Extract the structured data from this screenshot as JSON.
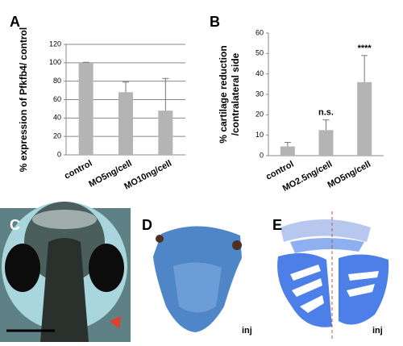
{
  "chart_data": [
    {
      "type": "bar",
      "panel_label": "A",
      "ylabel": "% expression of Pfkfb4/ control",
      "categories": [
        "control",
        "MO5ng/cell",
        "MO10ng/cell"
      ],
      "values": [
        100,
        68,
        48
      ],
      "errors": [
        0.5,
        11,
        35
      ],
      "color": "#b4b4b4",
      "ylim": [
        0,
        120
      ],
      "yticks": [
        0,
        20,
        40,
        60,
        80,
        100,
        120
      ],
      "grid": true
    },
    {
      "type": "bar",
      "panel_label": "B",
      "ylabel": [
        "% cartilage reduction",
        "/contralateral side"
      ],
      "categories": [
        "control",
        "MO2.5ng/cell",
        "MO5ng/cell"
      ],
      "values": [
        4.5,
        12.5,
        36
      ],
      "errors": [
        2,
        5,
        13
      ],
      "color": "#b4b4b4",
      "annotations": [
        null,
        "n.s.",
        "****"
      ],
      "ylim": [
        0,
        60
      ],
      "yticks": [
        0,
        10,
        20,
        30,
        40,
        50,
        60
      ],
      "grid": false
    }
  ],
  "panels": [
    {
      "label": "C"
    },
    {
      "label": "D",
      "note": "inj"
    },
    {
      "label": "E",
      "note": "inj"
    }
  ]
}
